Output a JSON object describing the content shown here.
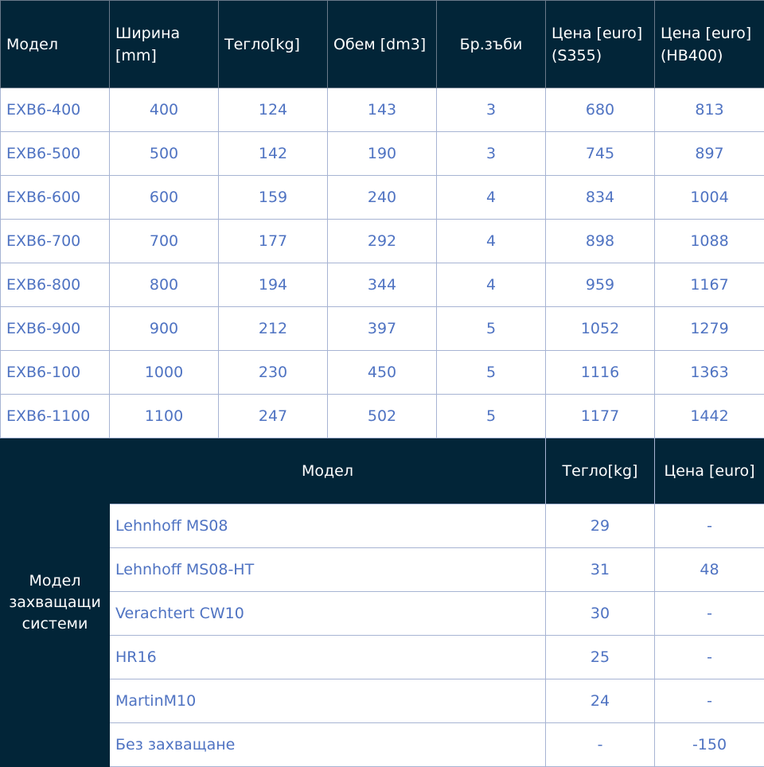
{
  "buckets": {
    "headers": [
      "Модел",
      "Ширина [mm]",
      "Тегло[kg]",
      "Обем [dm3]",
      "Бр.зъби",
      "Цена [euro] (S355)",
      "Цена [euro] (HB400)"
    ],
    "rows": [
      [
        "EXB6-400",
        "400",
        "124",
        "143",
        "3",
        "680",
        "813"
      ],
      [
        "EXB6-500",
        "500",
        "142",
        "190",
        "3",
        "745",
        "897"
      ],
      [
        "EXB6-600",
        "600",
        "159",
        "240",
        "4",
        "834",
        "1004"
      ],
      [
        "EXB6-700",
        "700",
        "177",
        "292",
        "4",
        "898",
        "1088"
      ],
      [
        "EXB6-800",
        "800",
        "194",
        "344",
        "4",
        "959",
        "1167"
      ],
      [
        "EXB6-900",
        "900",
        "212",
        "397",
        "5",
        "1052",
        "1279"
      ],
      [
        "EXB6-100",
        "1000",
        "230",
        "450",
        "5",
        "1116",
        "1363"
      ],
      [
        "EXB6-1100",
        "1100",
        "247",
        "502",
        "5",
        "1177",
        "1442"
      ]
    ]
  },
  "couplers": {
    "side_label": "Модел захващащи системи",
    "headers": [
      "Модел",
      "Тегло[kg]",
      "Цена [euro]"
    ],
    "rows": [
      [
        "Lehnhoff MS08",
        "29",
        "-"
      ],
      [
        "Lehnhoff MS08-HT",
        "31",
        "48"
      ],
      [
        "Verachtert CW10",
        "30",
        "-"
      ],
      [
        "HR16",
        "25",
        "-"
      ],
      [
        "MartinM10",
        "24",
        "-"
      ],
      [
        "Без захващане",
        "-",
        "-150"
      ]
    ]
  }
}
